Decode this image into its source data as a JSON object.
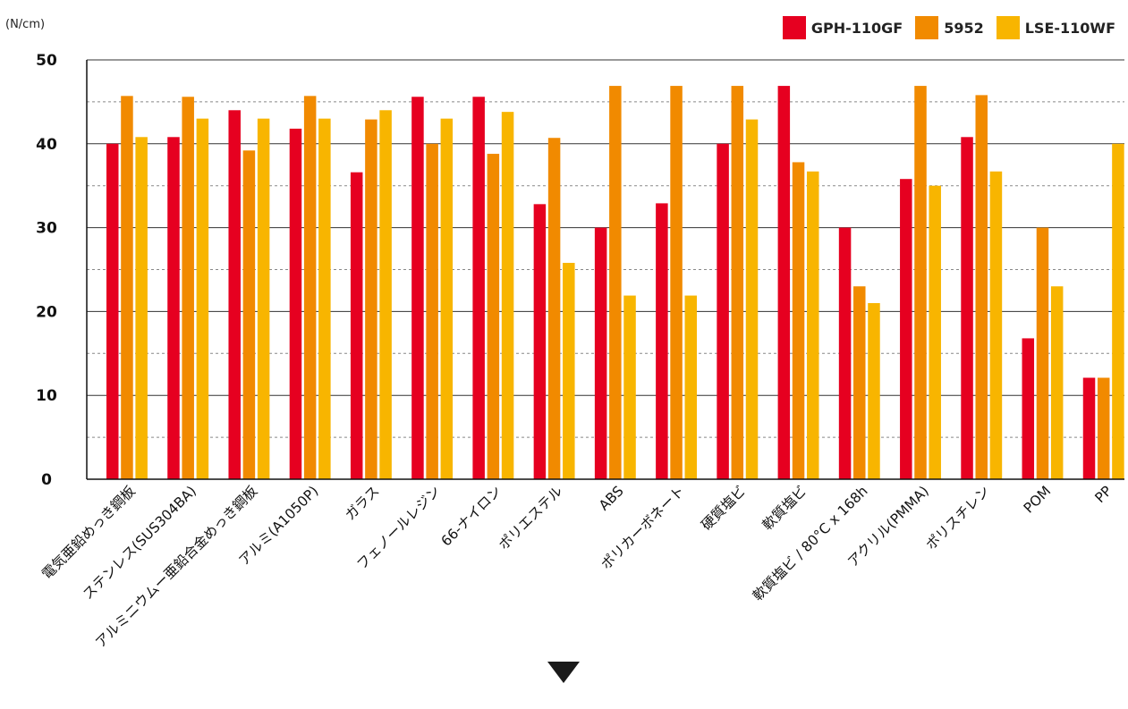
{
  "chart_data": {
    "type": "bar",
    "title": "",
    "unit_label": "(N/cm)",
    "xlabel": "",
    "ylabel": "",
    "ylim": [
      0,
      50
    ],
    "yticks": [
      0,
      10,
      20,
      30,
      40,
      50
    ],
    "grid": true,
    "legend_placement": "top-right",
    "categories": [
      "電気亜鉛めっき鋼板",
      "ステンレス(SUS304BA)",
      "アルミニウムー亜鉛合金めっき鋼板",
      "アルミ(A1050P)",
      "ガラス",
      "フェノールレジン",
      "66-ナイロン",
      "ポリエステル",
      "ABS",
      "ポリカーボネート",
      "硬質塩ビ",
      "軟質塩ビ",
      "軟質塩ビ / 80°C x 168h",
      "アクリル(PMMA)",
      "ポリスチレン",
      "POM",
      "PP"
    ],
    "series": [
      {
        "name": "GPH-110GF",
        "color": "#e60020",
        "values": [
          40,
          40.8,
          44,
          41.8,
          36.6,
          45.6,
          45.6,
          32.8,
          30,
          32.9,
          40,
          46.9,
          30,
          35.8,
          40.8,
          16.8,
          12.1
        ]
      },
      {
        "name": "5952",
        "color": "#f18a00",
        "values": [
          45.7,
          45.6,
          39.2,
          45.7,
          42.9,
          40,
          38.8,
          40.7,
          46.9,
          46.9,
          46.9,
          37.8,
          23,
          46.9,
          45.8,
          30,
          12.1
        ]
      },
      {
        "name": "LSE-110WF",
        "color": "#f8b500",
        "values": [
          40.8,
          43,
          43,
          43,
          44,
          43,
          43.8,
          25.8,
          21.9,
          21.9,
          42.9,
          36.7,
          21,
          35,
          36.7,
          23,
          40
        ]
      }
    ]
  },
  "page": {
    "scroll_icon": "down-arrow-icon"
  }
}
